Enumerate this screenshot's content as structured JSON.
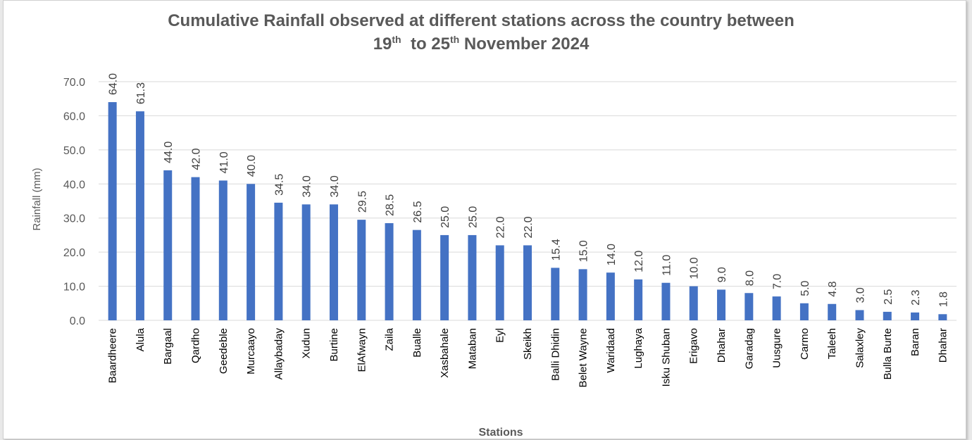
{
  "chart_data": {
    "type": "bar",
    "title_main": "Cumulative Rainfall observed at different  stations across the country between",
    "title_date": {
      "day1": "19",
      "sup1": "th",
      "to": "to",
      "day2": "25",
      "sup2": "th",
      "month_year": "November 2024"
    },
    "xlabel": "Stations",
    "ylabel": "Rainfall (mm)",
    "ylim": [
      0,
      70
    ],
    "yticks": [
      "0.0",
      "10.0",
      "20.0",
      "30.0",
      "40.0",
      "50.0",
      "60.0",
      "70.0"
    ],
    "grid": true,
    "bar_color": "#4472c4",
    "categories": [
      "Baardheere",
      "Alula",
      "Bargaal",
      "Qardho",
      "Geedeble",
      "Murcaayo",
      "Allaybaday",
      "Xudun",
      "Burtine",
      "ElAfwayn",
      "Zaila",
      "Bualle",
      "Xasbahale",
      "Mataban",
      "Eyl",
      "Skeikh",
      "Balli Dhidin",
      "Belet Wayne",
      "Waridaad",
      "Lughaya",
      "Isku Shuban",
      "Erigavo",
      "Dhahar",
      "Garadag",
      "Uusgure",
      "Carmo",
      "Taleeh",
      "Salaxley",
      "Bulla Burte",
      "Baran",
      "Dhahar"
    ],
    "values": [
      64.0,
      61.3,
      44.0,
      42.0,
      41.0,
      40.0,
      34.5,
      34.0,
      34.0,
      29.5,
      28.5,
      26.5,
      25.0,
      25.0,
      22.0,
      22.0,
      15.4,
      15.0,
      14.0,
      12.0,
      11.0,
      10.0,
      9.0,
      8.0,
      7.0,
      5.0,
      4.8,
      3.0,
      2.5,
      2.3,
      1.8
    ],
    "value_labels": [
      "64.0",
      "61.3",
      "44.0",
      "42.0",
      "41.0",
      "40.0",
      "34.5",
      "34.0",
      "34.0",
      "29.5",
      "28.5",
      "26.5",
      "25.0",
      "25.0",
      "22.0",
      "22.0",
      "15.4",
      "15.0",
      "14.0",
      "12.0",
      "11.0",
      "10.0",
      "9.0",
      "8.0",
      "7.0",
      "5.0",
      "4.8",
      "3.0",
      "2.5",
      "2.3",
      "1.8"
    ]
  }
}
